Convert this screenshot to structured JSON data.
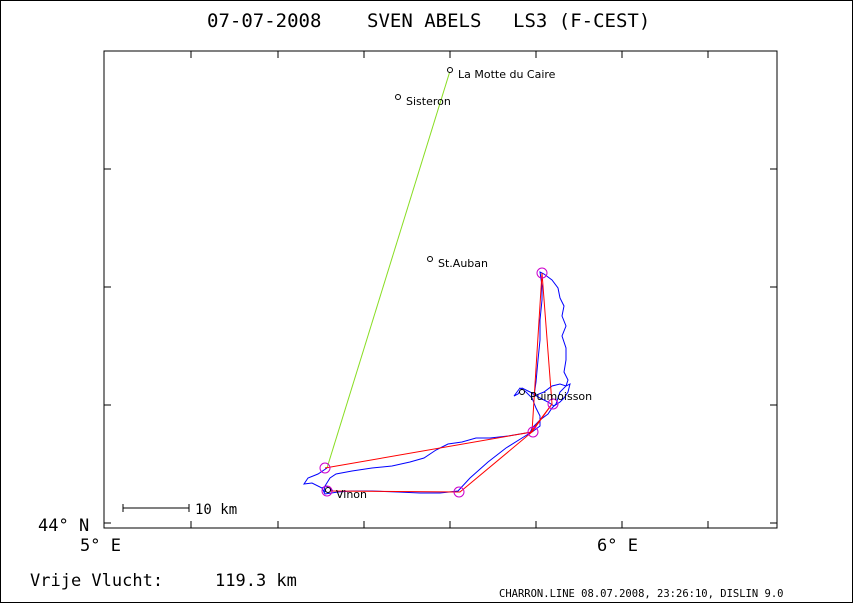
{
  "header": {
    "date": "07-07-2008",
    "pilot": "SVEN ABELS",
    "glider": "LS3 (F-CEST)"
  },
  "axes": {
    "lat_label": "44° N",
    "lon_labels": [
      "5° E",
      "6° E"
    ]
  },
  "scale_bar": {
    "label": "10 km"
  },
  "places": [
    {
      "name": "La Motte du Caire"
    },
    {
      "name": "Sisteron"
    },
    {
      "name": "St.Auban"
    },
    {
      "name": "Puimoisson"
    },
    {
      "name": "Vinon"
    }
  ],
  "summary": {
    "label": "Vrije Vlucht:",
    "distance": "119.3 km"
  },
  "footer": {
    "credit": "CHARRON.LINE 08.07.2008, 23:26:10, DISLIN 9.0"
  },
  "colors": {
    "track": "#0000ff",
    "task": "#ff0000",
    "straight_line": "#88dd22",
    "turnpoint": "#cc00cc"
  }
}
